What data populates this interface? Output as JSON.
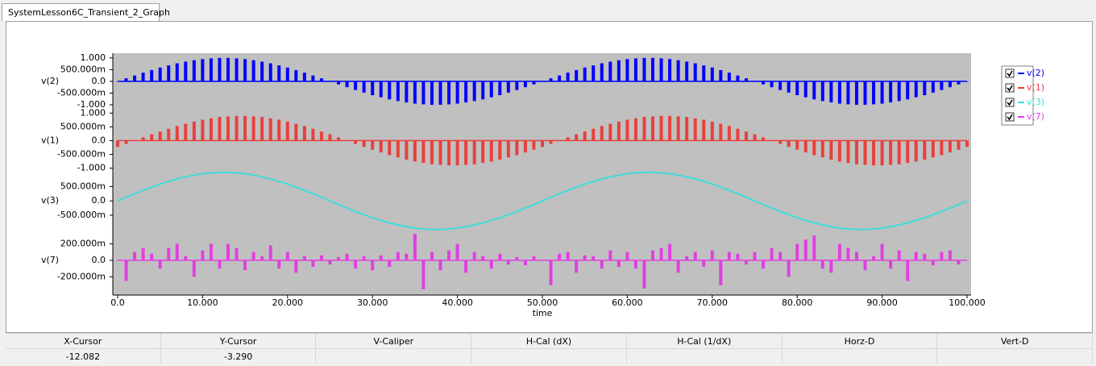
{
  "tab": "SystemLesson6C_Transient_2_Graph",
  "chart_data": [
    {
      "type": "stem",
      "xlim": [
        0,
        100
      ],
      "ylim": [
        -1,
        1.2
      ],
      "yticks": [
        {
          "value": 1,
          "label": "1.000"
        },
        {
          "value": 0.5,
          "label": "500.000m"
        },
        {
          "value": 0,
          "label": "0.0"
        },
        {
          "value": -0.5,
          "label": "-500.000m"
        },
        {
          "value": -1,
          "label": "-1.000"
        }
      ],
      "x": [
        0,
        1,
        2,
        3,
        4,
        5,
        6,
        7,
        8,
        9,
        10,
        11,
        12,
        13,
        14,
        15,
        16,
        17,
        18,
        19,
        20,
        21,
        22,
        23,
        24,
        25,
        26,
        27,
        28,
        29,
        30,
        31,
        32,
        33,
        34,
        35,
        36,
        37,
        38,
        39,
        40,
        41,
        42,
        43,
        44,
        45,
        46,
        47,
        48,
        49,
        50,
        51,
        52,
        53,
        54,
        55,
        56,
        57,
        58,
        59,
        60,
        61,
        62,
        63,
        64,
        65,
        66,
        67,
        68,
        69,
        70,
        71,
        72,
        73,
        74,
        75,
        76,
        77,
        78,
        79,
        80,
        81,
        82,
        83,
        84,
        85,
        86,
        87,
        88,
        89,
        90,
        91,
        92,
        93,
        94,
        95,
        96,
        97,
        98,
        99,
        100
      ],
      "series": [
        {
          "name": "v(2)",
          "color": "#0000ff",
          "values": [
            0,
            0.13,
            0.25,
            0.37,
            0.48,
            0.59,
            0.68,
            0.77,
            0.84,
            0.9,
            0.95,
            0.98,
            1,
            1,
            0.98,
            0.95,
            0.9,
            0.84,
            0.77,
            0.68,
            0.59,
            0.48,
            0.37,
            0.25,
            0.13,
            0,
            -0.13,
            -0.25,
            -0.37,
            -0.48,
            -0.59,
            -0.68,
            -0.77,
            -0.84,
            -0.9,
            -0.95,
            -0.98,
            -1,
            -1,
            -0.98,
            -0.95,
            -0.9,
            -0.84,
            -0.77,
            -0.68,
            -0.59,
            -0.48,
            -0.37,
            -0.25,
            -0.13,
            0,
            0.13,
            0.25,
            0.37,
            0.48,
            0.59,
            0.68,
            0.77,
            0.84,
            0.9,
            0.95,
            0.98,
            1,
            1,
            0.98,
            0.95,
            0.9,
            0.84,
            0.77,
            0.68,
            0.59,
            0.48,
            0.37,
            0.25,
            0.13,
            0,
            -0.13,
            -0.25,
            -0.37,
            -0.48,
            -0.59,
            -0.68,
            -0.77,
            -0.84,
            -0.9,
            -0.95,
            -0.98,
            -1,
            -1,
            -0.98,
            -0.95,
            -0.9,
            -0.84,
            -0.77,
            -0.68,
            -0.59,
            -0.48,
            -0.37,
            -0.25,
            -0.13,
            0
          ]
        }
      ]
    },
    {
      "type": "stem",
      "xlim": [
        0,
        100
      ],
      "ylim": [
        -1.1,
        1.3
      ],
      "yticks": [
        {
          "value": 1,
          "label": "1.000"
        },
        {
          "value": 0.5,
          "label": "500.000m"
        },
        {
          "value": 0,
          "label": "0.0"
        },
        {
          "value": -0.5,
          "label": "-500.000m"
        },
        {
          "value": -1,
          "label": "-1.000"
        }
      ],
      "x": [
        0,
        1,
        2,
        3,
        4,
        5,
        6,
        7,
        8,
        9,
        10,
        11,
        12,
        13,
        14,
        15,
        16,
        17,
        18,
        19,
        20,
        21,
        22,
        23,
        24,
        25,
        26,
        27,
        28,
        29,
        30,
        31,
        32,
        33,
        34,
        35,
        36,
        37,
        38,
        39,
        40,
        41,
        42,
        43,
        44,
        45,
        46,
        47,
        48,
        49,
        50,
        51,
        52,
        53,
        54,
        55,
        56,
        57,
        58,
        59,
        60,
        61,
        62,
        63,
        64,
        65,
        66,
        67,
        68,
        69,
        70,
        71,
        72,
        73,
        74,
        75,
        76,
        77,
        78,
        79,
        80,
        81,
        82,
        83,
        84,
        85,
        86,
        87,
        88,
        89,
        90,
        91,
        92,
        93,
        94,
        95,
        96,
        97,
        98,
        99,
        100
      ],
      "series": [
        {
          "name": "v(1)",
          "color": "#e8403c",
          "values": [
            -0.23,
            -0.12,
            0,
            0.12,
            0.23,
            0.33,
            0.43,
            0.53,
            0.61,
            0.69,
            0.76,
            0.81,
            0.86,
            0.88,
            0.9,
            0.9,
            0.88,
            0.86,
            0.81,
            0.76,
            0.69,
            0.61,
            0.53,
            0.43,
            0.33,
            0.23,
            0.12,
            0,
            -0.12,
            -0.23,
            -0.33,
            -0.43,
            -0.53,
            -0.61,
            -0.69,
            -0.76,
            -0.81,
            -0.86,
            -0.88,
            -0.9,
            -0.9,
            -0.88,
            -0.86,
            -0.81,
            -0.76,
            -0.69,
            -0.61,
            -0.53,
            -0.43,
            -0.33,
            -0.23,
            -0.12,
            0,
            0.12,
            0.23,
            0.33,
            0.43,
            0.53,
            0.61,
            0.69,
            0.76,
            0.81,
            0.86,
            0.88,
            0.9,
            0.9,
            0.88,
            0.86,
            0.81,
            0.76,
            0.69,
            0.61,
            0.53,
            0.43,
            0.33,
            0.23,
            0.12,
            0,
            -0.12,
            -0.23,
            -0.33,
            -0.43,
            -0.53,
            -0.61,
            -0.69,
            -0.76,
            -0.81,
            -0.86,
            -0.88,
            -0.9,
            -0.9,
            -0.88,
            -0.86,
            -0.81,
            -0.76,
            -0.69,
            -0.61,
            -0.53,
            -0.43,
            -0.33,
            -0.23
          ]
        }
      ]
    },
    {
      "type": "line",
      "xlim": [
        0,
        100
      ],
      "ylim": [
        -1.15,
        1.05
      ],
      "yticks": [
        {
          "value": 0.5,
          "label": "500.000m"
        },
        {
          "value": 0,
          "label": "0.0"
        },
        {
          "value": -0.5,
          "label": "-500.000m"
        }
      ],
      "x": [
        0,
        1,
        2,
        3,
        4,
        5,
        6,
        7,
        8,
        9,
        10,
        11,
        12,
        13,
        14,
        15,
        16,
        17,
        18,
        19,
        20,
        21,
        22,
        23,
        24,
        25,
        26,
        27,
        28,
        29,
        30,
        31,
        32,
        33,
        34,
        35,
        36,
        37,
        38,
        39,
        40,
        41,
        42,
        43,
        44,
        45,
        46,
        47,
        48,
        49,
        50,
        51,
        52,
        53,
        54,
        55,
        56,
        57,
        58,
        59,
        60,
        61,
        62,
        63,
        64,
        65,
        66,
        67,
        68,
        69,
        70,
        71,
        72,
        73,
        74,
        75,
        76,
        77,
        78,
        79,
        80,
        81,
        82,
        83,
        84,
        85,
        86,
        87,
        88,
        89,
        90,
        91,
        92,
        93,
        94,
        95,
        96,
        97,
        98,
        99,
        100
      ],
      "series": [
        {
          "name": "v(3)",
          "color": "#3fdcdc",
          "values": [
            0,
            0.13,
            0.25,
            0.37,
            0.48,
            0.59,
            0.68,
            0.77,
            0.84,
            0.9,
            0.95,
            0.98,
            1,
            1,
            0.98,
            0.95,
            0.9,
            0.84,
            0.77,
            0.68,
            0.59,
            0.48,
            0.37,
            0.25,
            0.13,
            0,
            -0.13,
            -0.25,
            -0.37,
            -0.48,
            -0.59,
            -0.68,
            -0.77,
            -0.84,
            -0.9,
            -0.95,
            -0.98,
            -1,
            -1,
            -0.98,
            -0.95,
            -0.9,
            -0.84,
            -0.77,
            -0.68,
            -0.59,
            -0.48,
            -0.37,
            -0.25,
            -0.13,
            0,
            0.13,
            0.25,
            0.37,
            0.48,
            0.59,
            0.68,
            0.77,
            0.84,
            0.9,
            0.95,
            0.98,
            1,
            1,
            0.98,
            0.95,
            0.9,
            0.84,
            0.77,
            0.68,
            0.59,
            0.48,
            0.37,
            0.25,
            0.13,
            0,
            -0.13,
            -0.25,
            -0.37,
            -0.48,
            -0.59,
            -0.68,
            -0.77,
            -0.84,
            -0.9,
            -0.95,
            -0.98,
            -1,
            -1,
            -0.98,
            -0.95,
            -0.9,
            -0.84,
            -0.77,
            -0.68,
            -0.59,
            -0.48,
            -0.37,
            -0.25,
            -0.13,
            0
          ]
        }
      ]
    },
    {
      "type": "stem",
      "xlim": [
        0,
        100
      ],
      "ylim": [
        -0.42,
        0.36
      ],
      "yticks": [
        {
          "value": 0.2,
          "label": "200.000m"
        },
        {
          "value": 0,
          "label": "0.0"
        },
        {
          "value": -0.2,
          "label": "-200.000m"
        }
      ],
      "xticks": [
        {
          "value": 0,
          "label": "0.0"
        },
        {
          "value": 10,
          "label": "10.000"
        },
        {
          "value": 20,
          "label": "20.000"
        },
        {
          "value": 30,
          "label": "30.000"
        },
        {
          "value": 40,
          "label": "40.000"
        },
        {
          "value": 50,
          "label": "50.000"
        },
        {
          "value": 60,
          "label": "60.000"
        },
        {
          "value": 70,
          "label": "70.000"
        },
        {
          "value": 80,
          "label": "80.000"
        },
        {
          "value": 90,
          "label": "90.000"
        },
        {
          "value": 100,
          "label": "100.000"
        }
      ],
      "x_label": "time",
      "x": [
        0,
        1,
        2,
        3,
        4,
        5,
        6,
        7,
        8,
        9,
        10,
        11,
        12,
        13,
        14,
        15,
        16,
        17,
        18,
        19,
        20,
        21,
        22,
        23,
        24,
        25,
        26,
        27,
        28,
        29,
        30,
        31,
        32,
        33,
        34,
        35,
        36,
        37,
        38,
        39,
        40,
        41,
        42,
        43,
        44,
        45,
        46,
        47,
        48,
        49,
        50,
        51,
        52,
        53,
        54,
        55,
        56,
        57,
        58,
        59,
        60,
        61,
        62,
        63,
        64,
        65,
        66,
        67,
        68,
        69,
        70,
        71,
        72,
        73,
        74,
        75,
        76,
        77,
        78,
        79,
        80,
        81,
        82,
        83,
        84,
        85,
        86,
        87,
        88,
        89,
        90,
        91,
        92,
        93,
        94,
        95,
        96,
        97,
        98,
        99,
        100
      ],
      "series": [
        {
          "name": "v(7)",
          "color": "#e040e0",
          "values": [
            0,
            -0.25,
            0.1,
            0.15,
            0.08,
            -0.1,
            0.15,
            0.2,
            0.05,
            -0.2,
            0.12,
            0.2,
            -0.1,
            0.2,
            0.15,
            -0.12,
            0.1,
            0.05,
            0.18,
            -0.1,
            0.1,
            -0.15,
            0.05,
            -0.08,
            0.06,
            -0.05,
            0.04,
            0.08,
            -0.1,
            0.05,
            -0.12,
            0.06,
            -0.08,
            0.1,
            0.08,
            0.32,
            -0.35,
            0.1,
            -0.12,
            0.12,
            0.2,
            -0.15,
            0.1,
            0.05,
            -0.1,
            0.08,
            -0.05,
            0.04,
            -0.06,
            0.05,
            0,
            -0.3,
            0.08,
            0.1,
            -0.15,
            0.06,
            0.05,
            -0.1,
            0.12,
            -0.08,
            0.1,
            -0.1,
            -0.34,
            0.12,
            0.15,
            0.2,
            -0.15,
            0.05,
            0.1,
            -0.08,
            0.12,
            -0.3,
            0.1,
            0.08,
            -0.05,
            0.1,
            -0.1,
            0.15,
            0.1,
            -0.2,
            0.2,
            0.25,
            0.3,
            -0.1,
            -0.15,
            0.2,
            0.15,
            0.1,
            -0.12,
            0.05,
            0.2,
            -0.1,
            0.12,
            -0.25,
            0.1,
            0.08,
            -0.06,
            0.1,
            0.12,
            -0.05,
            0
          ]
        }
      ]
    }
  ],
  "cursor_table": {
    "headers": [
      "X-Cursor",
      "Y-Cursor",
      "V-Caliper",
      "H-Cal (dX)",
      "H-Cal (1/dX)",
      "Horz-D",
      "Vert-D"
    ],
    "values": [
      "-12.082",
      "-3.290"
    ]
  }
}
